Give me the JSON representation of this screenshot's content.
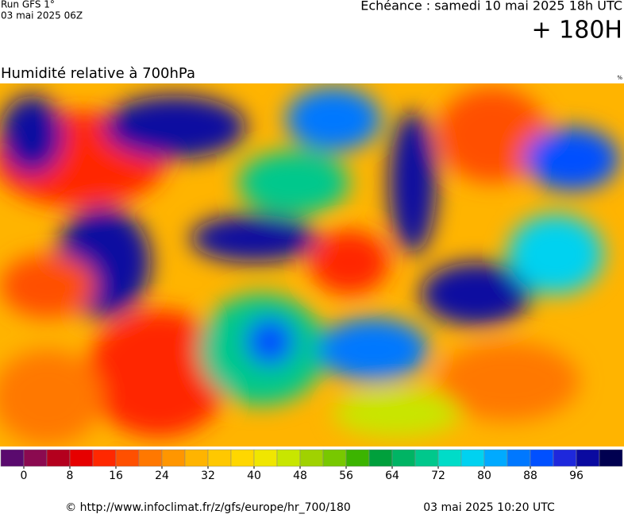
{
  "header": {
    "run": "Run GFS 1°",
    "run_date": "03 mai 2025 06Z",
    "valid": "Echéance : samedi 10 mai 2025 18h UTC",
    "lead": "+ 180H"
  },
  "map": {
    "title": "Humidité relative à 700hPa",
    "unit": "%"
  },
  "legend": {
    "colors": [
      "#5a0a6e",
      "#8b0a50",
      "#b4001e",
      "#e60000",
      "#ff2800",
      "#ff5000",
      "#ff7800",
      "#ff9600",
      "#ffb400",
      "#ffc800",
      "#ffd700",
      "#f0e600",
      "#c8e600",
      "#a0d200",
      "#78c800",
      "#3cb400",
      "#00a03c",
      "#00b464",
      "#00c88c",
      "#00dcc8",
      "#00d2f0",
      "#00aaff",
      "#0078ff",
      "#0050ff",
      "#1e28dc",
      "#0a0aa0",
      "#000050"
    ],
    "ticks": [
      0,
      8,
      16,
      24,
      32,
      40,
      48,
      56,
      64,
      72,
      80,
      88,
      96
    ]
  },
  "footer": {
    "source": "© http://www.infoclimat.fr/z/gfs/europe/hr_700/180",
    "timestamp": "03 mai 2025 10:20 UTC"
  }
}
